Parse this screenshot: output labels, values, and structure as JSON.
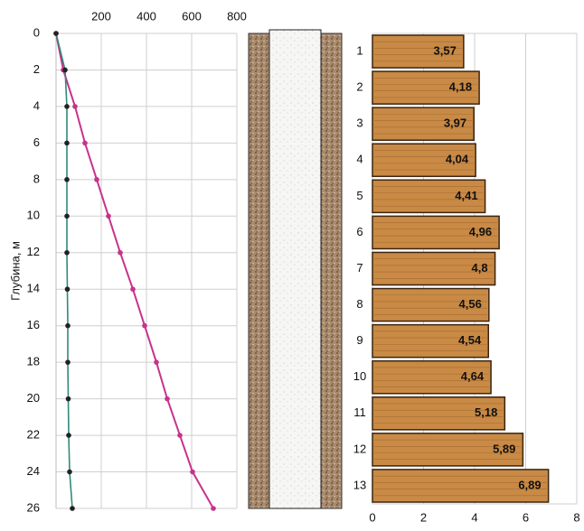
{
  "chart_data": [
    {
      "type": "line",
      "ylabel": "Глубина, м",
      "y": [
        0,
        2,
        4,
        6,
        8,
        10,
        12,
        14,
        16,
        18,
        20,
        22,
        24,
        26
      ],
      "series": [
        {
          "color": "#c8328c",
          "values": [
            0,
            32,
            84,
            128,
            180,
            232,
            284,
            340,
            392,
            444,
            492,
            548,
            604,
            696
          ]
        },
        {
          "color": "#2e8b7a",
          "values": [
            0,
            40,
            48,
            48,
            48,
            48,
            48,
            50,
            52,
            52,
            54,
            56,
            60,
            72
          ]
        }
      ],
      "xlim": [
        0,
        800
      ],
      "xticks": [
        200,
        400,
        600,
        800
      ],
      "ylim": [
        0,
        26
      ],
      "yticks": [
        0,
        2,
        4,
        6,
        8,
        10,
        12,
        14,
        16,
        18,
        20,
        22,
        24,
        26
      ],
      "y_inverted": true,
      "grid": true
    },
    {
      "type": "hbar",
      "color": "#c98a45",
      "categories": [
        "1",
        "2",
        "3",
        "4",
        "5",
        "6",
        "7",
        "8",
        "9",
        "10",
        "11",
        "12",
        "13"
      ],
      "values": [
        3.57,
        4.18,
        3.97,
        4.04,
        4.41,
        4.96,
        4.8,
        4.56,
        4.54,
        4.64,
        5.18,
        5.89,
        6.89
      ],
      "value_labels": [
        "3,57",
        "4,18",
        "3,97",
        "4,04",
        "4,41",
        "4,96",
        "4,8",
        "4,56",
        "4,54",
        "4,64",
        "5,18",
        "5,89",
        "6,89"
      ],
      "xlim": [
        0,
        8
      ],
      "xticks": [
        0,
        2,
        4,
        6,
        8
      ],
      "grid": true
    }
  ]
}
